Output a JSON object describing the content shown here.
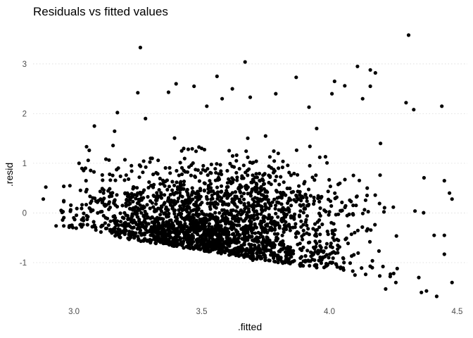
{
  "chart_data": {
    "type": "scatter",
    "title": "Residuals vs fitted values",
    "xlabel": ".fitted",
    "ylabel": ".resid",
    "xlim": [
      2.84,
      4.54
    ],
    "ylim": [
      -1.78,
      3.72
    ],
    "x_ticks": [
      3.0,
      3.5,
      4.0,
      4.5
    ],
    "x_tick_labels": [
      "3.0",
      "3.5",
      "4.0",
      "4.5"
    ],
    "y_ticks": [
      -1,
      0,
      1,
      2,
      3
    ],
    "y_tick_labels": [
      "-1",
      "0",
      "1",
      "2",
      "3"
    ],
    "grid": true,
    "grid_style": "dotted-horizontal",
    "point_color": "#000000",
    "points": [
      [
        3.26,
        3.33
      ],
      [
        3.67,
        3.04
      ],
      [
        4.31,
        3.58
      ],
      [
        3.87,
        2.73
      ],
      [
        4.02,
        2.65
      ],
      [
        4.11,
        2.95
      ],
      [
        4.16,
        2.88
      ],
      [
        4.18,
        2.82
      ],
      [
        3.56,
        2.75
      ],
      [
        3.4,
        2.6
      ],
      [
        3.25,
        2.42
      ],
      [
        3.47,
        2.55
      ],
      [
        3.62,
        2.5
      ],
      [
        4.06,
        2.56
      ],
      [
        4.01,
        2.4
      ],
      [
        4.13,
        2.3
      ],
      [
        4.3,
        2.22
      ],
      [
        4.33,
        2.08
      ],
      [
        4.44,
        2.15
      ],
      [
        3.37,
        2.43
      ],
      [
        3.17,
        2.02
      ],
      [
        3.58,
        2.3
      ],
      [
        3.08,
        1.75
      ],
      [
        3.28,
        1.9
      ],
      [
        3.69,
        2.33
      ],
      [
        3.79,
        2.4
      ],
      [
        4.16,
        2.55
      ],
      [
        3.52,
        2.15
      ],
      [
        3.92,
        2.13
      ],
      [
        2.89,
        0.52
      ],
      [
        2.88,
        0.28
      ],
      [
        2.93,
        -0.26
      ],
      [
        2.95,
        0.05
      ],
      [
        3.03,
        -0.28
      ],
      [
        3.06,
        1.26
      ],
      [
        3.02,
        1.0
      ],
      [
        4.45,
        0.65
      ],
      [
        4.47,
        0.4
      ],
      [
        4.48,
        0.28
      ],
      [
        4.45,
        -0.45
      ],
      [
        4.45,
        -0.83
      ],
      [
        4.41,
        -0.45
      ],
      [
        4.48,
        -1.4
      ],
      [
        4.42,
        -1.68
      ],
      [
        4.38,
        -1.57
      ],
      [
        4.35,
        -1.3
      ],
      [
        4.36,
        -1.6
      ],
      [
        4.26,
        -1.4
      ],
      [
        4.22,
        -1.53
      ],
      [
        3.7,
        -0.95
      ],
      [
        3.95,
        -1.1
      ],
      [
        4.1,
        -1.25
      ],
      [
        3.4,
        -0.6
      ],
      [
        3.6,
        -0.75
      ],
      [
        3.8,
        -0.9
      ],
      [
        3.3,
        1.1
      ],
      [
        3.5,
        1.3
      ],
      [
        3.75,
        1.55
      ],
      [
        3.95,
        1.7
      ],
      [
        4.2,
        1.4
      ],
      [
        3.44,
        0.2
      ],
      [
        3.6,
        0.3
      ],
      [
        3.85,
        0.15
      ],
      [
        4.05,
        0.05
      ],
      [
        3.2,
        0.4
      ]
    ]
  }
}
